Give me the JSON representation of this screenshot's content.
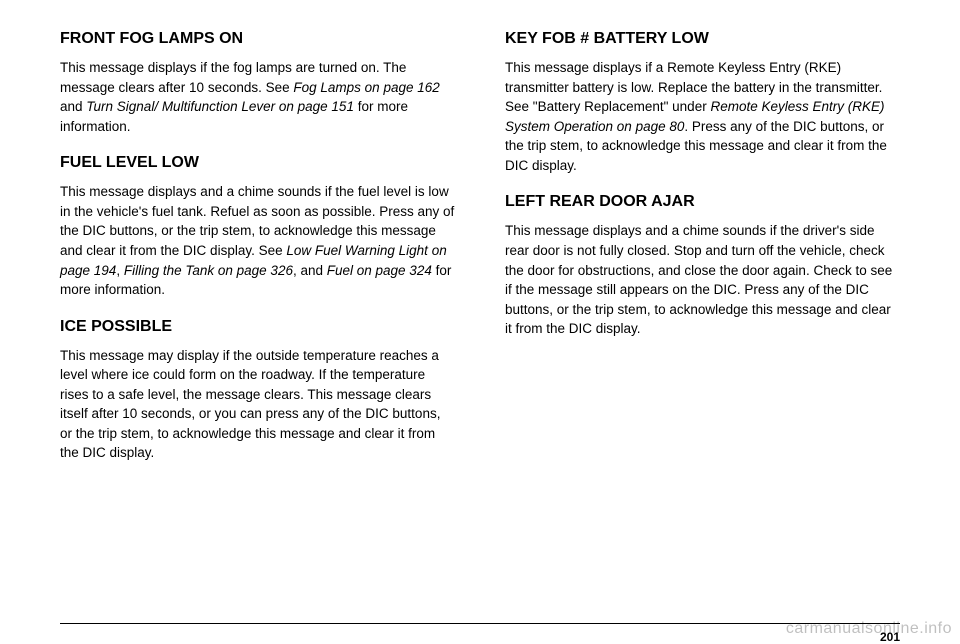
{
  "left": {
    "s1": {
      "heading": "FRONT FOG LAMPS ON",
      "body_a": "This message displays if the fog lamps are turned on. The message clears after 10 seconds. See ",
      "body_b": "Fog Lamps on page 162",
      "body_c": " and ",
      "body_d": "Turn Signal/ Multifunction Lever on page 151",
      "body_e": " for more information."
    },
    "s2": {
      "heading": "FUEL LEVEL LOW",
      "body_a": "This message displays and a chime sounds if the fuel level is low in the vehicle's fuel tank. Refuel as soon as possible. Press any of the DIC buttons, or the trip stem, to acknowledge this message and clear it from the DIC display. See ",
      "body_b": "Low Fuel Warning Light on page 194",
      "body_c": ", ",
      "body_d": "Filling the Tank on page 326",
      "body_e": ", and ",
      "body_f": "Fuel on page 324",
      "body_g": " for more information."
    },
    "s3": {
      "heading": "ICE POSSIBLE",
      "body": "This message may display if the outside temperature reaches a level where ice could form on the roadway. If the temperature rises to a safe level, the message clears. This message clears itself after 10 seconds, or you can press any of the DIC buttons, or the trip stem, to acknowledge this message and clear it from the DIC display."
    }
  },
  "right": {
    "s1": {
      "heading": "KEY FOB # BATTERY LOW",
      "body_a": "This message displays if a Remote Keyless Entry (RKE) transmitter battery is low. Replace the battery in the transmitter. See \"Battery Replacement\" under ",
      "body_b": "Remote Keyless Entry (RKE) System Operation on page 80",
      "body_c": ". Press any of the DIC buttons, or the trip stem, to acknowledge this message and clear it from the DIC display."
    },
    "s2": {
      "heading": "LEFT REAR DOOR AJAR",
      "body": "This message displays and a chime sounds if the driver's side rear door is not fully closed. Stop and turn off the vehicle, check the door for obstructions, and close the door again. Check to see if the message still appears on the DIC. Press any of the DIC buttons, or the trip stem, to acknowledge this message and clear it from the DIC display."
    }
  },
  "page_number": "201",
  "watermark": "carmanualsonline.info"
}
